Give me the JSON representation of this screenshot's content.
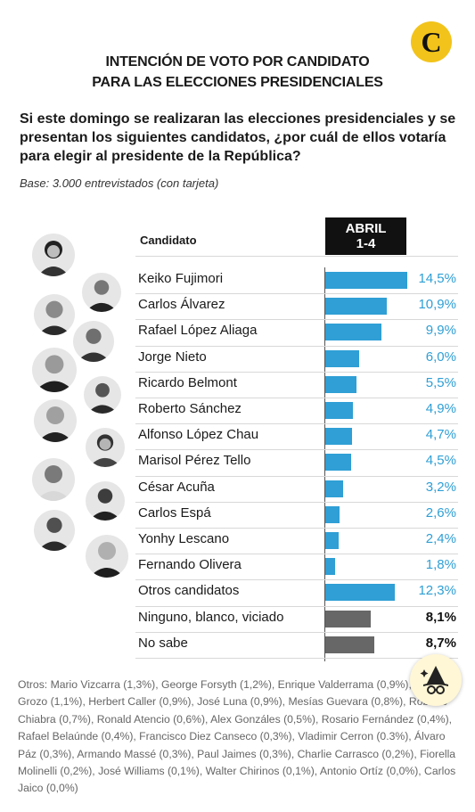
{
  "logo_letter": "C",
  "title_line1": "INTENCIÓN DE VOTO POR CANDIDATO",
  "title_line2": "PARA LAS ELECCIONES PRESIDENCIALES",
  "question": "Si este domingo se realizaran las elecciones presidenciales y se presentan los siguientes candidatos, ¿por cuál de ellos votaría para elegir al presidente de la República?",
  "base": "Base: 3.000 entrevistados (con tarjeta)",
  "column_header": "Candidato",
  "period_line1": "ABRIL",
  "period_line2": "1-4",
  "colors": {
    "highlight": "#2f9fd5",
    "other": "#676767",
    "logo": "#f2c31a"
  },
  "chart_data": {
    "type": "bar",
    "orientation": "horizontal",
    "categories": [
      "Keiko Fujimori",
      "Carlos Álvarez",
      "Rafael López Aliaga",
      "Jorge Nieto",
      "Ricardo Belmont",
      "Roberto Sánchez",
      "Alfonso López Chau",
      "Marisol Pérez Tello",
      "César Acuña",
      "Carlos Espá",
      "Yonhy Lescano",
      "Fernando Olivera",
      "Otros candidatos",
      "Ninguno, blanco, viciado",
      "No sabe"
    ],
    "values": [
      14.5,
      10.9,
      9.9,
      6.0,
      5.5,
      4.9,
      4.7,
      4.5,
      3.2,
      2.6,
      2.4,
      1.8,
      12.3,
      8.1,
      8.7
    ],
    "value_labels": [
      "14,5%",
      "10,9%",
      "9,9%",
      "6,0%",
      "5,5%",
      "4,9%",
      "4,7%",
      "4,5%",
      "3,2%",
      "2,6%",
      "2,4%",
      "1,8%",
      "12,3%",
      "8,1%",
      "8,7%"
    ],
    "bar_colors": [
      "#2f9fd5",
      "#2f9fd5",
      "#2f9fd5",
      "#2f9fd5",
      "#2f9fd5",
      "#2f9fd5",
      "#2f9fd5",
      "#2f9fd5",
      "#2f9fd5",
      "#2f9fd5",
      "#2f9fd5",
      "#2f9fd5",
      "#2f9fd5",
      "#676767",
      "#676767"
    ],
    "xlim": [
      0,
      16.5
    ]
  },
  "footnote": "Otros: Mario Vizcarra (1,3%), George Forsyth (1,2%), Enrique Valderrama (0,9%), Wolfgang Grozo (1,1%), Herbert Caller (0,9%), José Luna (0,9%), Mesías Guevara (0,8%), Roberto Chiabra (0,7%), Ronald Atencio (0,6%), Alex Gonzáles (0,5%), Rosario Fernández (0,4%), Rafael Belaúnde (0,4%), Francisco Diez Canseco (0,3%), Vladimir Cerron (0.3%), Álvaro Páz (0,3%), Armando Massé (0,3%), Paul Jaimes (0,3%), Charlie Carrasco (0,2%), Fiorella Molinelli (0,2%), José Williams (0,1%), Walter Chirinos (0,1%), Antonio Ortíz (0,0%), Carlos Jaico (0,0%)"
}
